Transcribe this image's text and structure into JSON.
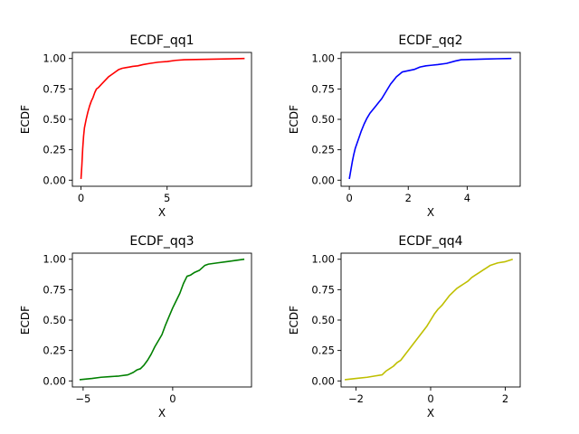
{
  "chart_data": [
    {
      "type": "line",
      "title": "ECDF_qq1",
      "xlabel": "X",
      "ylabel": "ECDF",
      "color": "#ff0000",
      "xlim": [
        -0.5,
        9.9
      ],
      "ylim": [
        -0.05,
        1.05
      ],
      "xticks": [
        0,
        5
      ],
      "yticks": [
        0.0,
        0.25,
        0.5,
        0.75,
        1.0
      ],
      "grid": false,
      "x": [
        0.0,
        0.05,
        0.1,
        0.15,
        0.2,
        0.3,
        0.4,
        0.5,
        0.6,
        0.7,
        0.8,
        0.9,
        1.0,
        1.2,
        1.4,
        1.6,
        1.8,
        2.0,
        2.2,
        2.4,
        2.6,
        2.8,
        3.0,
        3.3,
        3.6,
        4.0,
        4.5,
        5.0,
        5.5,
        6.0,
        7.0,
        8.0,
        9.5
      ],
      "y": [
        0.01,
        0.12,
        0.26,
        0.36,
        0.43,
        0.5,
        0.56,
        0.61,
        0.65,
        0.68,
        0.72,
        0.75,
        0.76,
        0.79,
        0.82,
        0.85,
        0.87,
        0.89,
        0.91,
        0.92,
        0.925,
        0.93,
        0.935,
        0.94,
        0.95,
        0.96,
        0.97,
        0.975,
        0.985,
        0.99,
        0.993,
        0.996,
        1.0
      ]
    },
    {
      "type": "line",
      "title": "ECDF_qq2",
      "xlabel": "X",
      "ylabel": "ECDF",
      "color": "#0000ff",
      "xlim": [
        -0.28,
        5.8
      ],
      "ylim": [
        -0.05,
        1.05
      ],
      "xticks": [
        0,
        2,
        4
      ],
      "yticks": [
        0.0,
        0.25,
        0.5,
        0.75,
        1.0
      ],
      "grid": false,
      "x": [
        0.0,
        0.05,
        0.1,
        0.15,
        0.2,
        0.3,
        0.4,
        0.5,
        0.6,
        0.7,
        0.8,
        0.9,
        1.0,
        1.1,
        1.2,
        1.3,
        1.4,
        1.5,
        1.6,
        1.7,
        1.8,
        2.0,
        2.2,
        2.4,
        2.6,
        2.8,
        3.0,
        3.3,
        3.6,
        3.8,
        4.2,
        4.6,
        5.0,
        5.5
      ],
      "y": [
        0.01,
        0.08,
        0.15,
        0.21,
        0.26,
        0.33,
        0.4,
        0.46,
        0.51,
        0.55,
        0.58,
        0.61,
        0.64,
        0.67,
        0.71,
        0.75,
        0.79,
        0.82,
        0.85,
        0.87,
        0.89,
        0.9,
        0.91,
        0.93,
        0.94,
        0.945,
        0.95,
        0.96,
        0.98,
        0.99,
        0.993,
        0.996,
        0.998,
        1.0
      ]
    },
    {
      "type": "line",
      "title": "ECDF_qq3",
      "xlabel": "X",
      "ylabel": "ECDF",
      "color": "#008000",
      "xlim": [
        -5.6,
        4.4
      ],
      "ylim": [
        -0.05,
        1.05
      ],
      "xticks": [
        -5,
        0
      ],
      "yticks": [
        0.0,
        0.25,
        0.5,
        0.75,
        1.0
      ],
      "grid": false,
      "x": [
        -5.2,
        -4.5,
        -4.0,
        -3.5,
        -3.0,
        -2.5,
        -2.2,
        -2.0,
        -1.8,
        -1.6,
        -1.4,
        -1.2,
        -1.0,
        -0.8,
        -0.6,
        -0.4,
        -0.2,
        0.0,
        0.2,
        0.4,
        0.6,
        0.8,
        1.0,
        1.2,
        1.5,
        1.8,
        2.0,
        2.5,
        3.0,
        3.5,
        4.0
      ],
      "y": [
        0.01,
        0.02,
        0.03,
        0.035,
        0.04,
        0.05,
        0.07,
        0.09,
        0.1,
        0.13,
        0.17,
        0.22,
        0.28,
        0.33,
        0.38,
        0.46,
        0.53,
        0.6,
        0.66,
        0.72,
        0.8,
        0.86,
        0.87,
        0.89,
        0.91,
        0.95,
        0.96,
        0.97,
        0.98,
        0.99,
        1.0
      ]
    },
    {
      "type": "line",
      "title": "ECDF_qq4",
      "xlabel": "X",
      "ylabel": "ECDF",
      "color": "#bfbf00",
      "xlim": [
        -2.4,
        2.4
      ],
      "ylim": [
        -0.05,
        1.05
      ],
      "xticks": [
        -2,
        0,
        2
      ],
      "yticks": [
        0.0,
        0.25,
        0.5,
        0.75,
        1.0
      ],
      "grid": false,
      "x": [
        -2.3,
        -2.0,
        -1.7,
        -1.5,
        -1.3,
        -1.2,
        -1.1,
        -1.0,
        -0.9,
        -0.8,
        -0.7,
        -0.6,
        -0.5,
        -0.4,
        -0.3,
        -0.2,
        -0.1,
        0.0,
        0.1,
        0.2,
        0.3,
        0.4,
        0.5,
        0.6,
        0.7,
        0.8,
        0.9,
        1.0,
        1.1,
        1.2,
        1.3,
        1.4,
        1.5,
        1.6,
        1.8,
        2.0,
        2.2
      ],
      "y": [
        0.01,
        0.02,
        0.03,
        0.04,
        0.05,
        0.08,
        0.1,
        0.12,
        0.15,
        0.17,
        0.21,
        0.25,
        0.29,
        0.33,
        0.37,
        0.41,
        0.45,
        0.5,
        0.55,
        0.59,
        0.62,
        0.66,
        0.7,
        0.73,
        0.76,
        0.78,
        0.8,
        0.82,
        0.85,
        0.87,
        0.89,
        0.91,
        0.93,
        0.95,
        0.97,
        0.98,
        1.0
      ]
    }
  ]
}
